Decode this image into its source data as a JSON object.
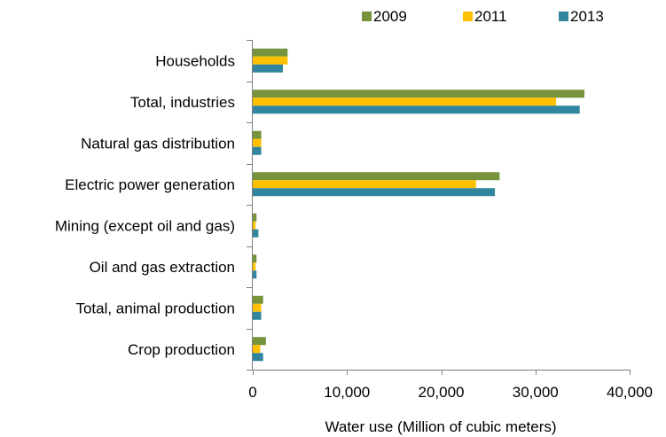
{
  "chart_data": {
    "type": "bar",
    "orientation": "horizontal",
    "categories": [
      "Households",
      "Total, industries",
      "Natural gas distribution",
      "Electric power generation",
      "Mining (except oil and gas)",
      "Oil and gas extraction",
      "Total, animal production",
      "Crop production"
    ],
    "series": [
      {
        "name": "2009",
        "color": "#77933c",
        "values": [
          3700,
          35200,
          900,
          26200,
          400,
          400,
          1100,
          1400
        ]
      },
      {
        "name": "2011",
        "color": "#ffc000",
        "values": [
          3700,
          32200,
          900,
          23700,
          300,
          300,
          900,
          800
        ]
      },
      {
        "name": "2013",
        "color": "#31859c",
        "values": [
          3200,
          34700,
          900,
          25700,
          600,
          400,
          900,
          1100
        ]
      }
    ],
    "xlabel": "Water use (Million of cubic meters)",
    "xlim": [
      0,
      40000
    ],
    "xticks": [
      0,
      10000,
      20000,
      30000,
      40000
    ],
    "xtick_labels": [
      "0",
      "10,000",
      "20,000",
      "30,000",
      "40,000"
    ],
    "grid": false,
    "legend_position": "top-right"
  }
}
